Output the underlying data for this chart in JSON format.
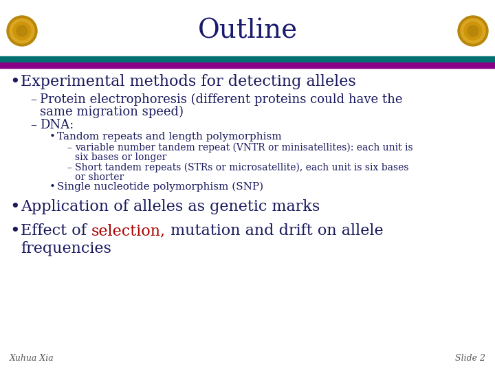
{
  "title": "Outline",
  "title_color": "#1a1a6e",
  "title_fontsize": 28,
  "background_color": "#ffffff",
  "teal_color": "#007070",
  "purple_color": "#880088",
  "text_color": "#1a1a5e",
  "red_color": "#aa0000",
  "footer_color": "#555555",
  "footer_fontsize": 9,
  "footer_left": "Xuhua Xia",
  "footer_right": "Slide 2",
  "bullet1": "Experimental methods for detecting alleles",
  "sub1": "Protein electrophoresis (different proteins could have the\nsame migration speed)",
  "sub2": "DNA:",
  "sub2a": "Tandom repeats and length polymorphism",
  "sub2a1": "variable number tandem repeat (VNTR or minisatellites): each unit is\nsix bases or longer",
  "sub2a2": "Short tandem repeats (STRs or microsatellite), each unit is six bases\nor shorter",
  "sub2b": "Single nucleotide polymorphism (SNP)",
  "bullet2": "Application of alleles as genetic marks",
  "bullet3_before": "Effect of ",
  "bullet3_red": "selection,",
  "bullet3_after": " mutation and drift on allele",
  "bullet3_line2": "frequencies"
}
